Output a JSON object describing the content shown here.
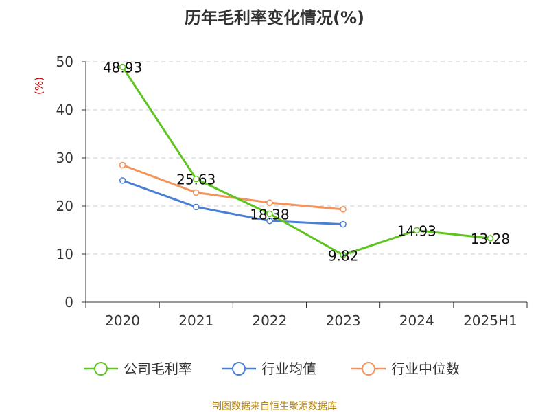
{
  "chart_data": {
    "type": "line",
    "title": "历年毛利率变化情况(%)",
    "ylabel": "(%)",
    "xlabel": "",
    "categories": [
      "2020",
      "2021",
      "2022",
      "2023",
      "2024",
      "2025H1"
    ],
    "ylim": [
      0,
      50
    ],
    "yticks": [
      0,
      10,
      20,
      30,
      40,
      50
    ],
    "grid": true,
    "legend_position": "bottom",
    "series": [
      {
        "name": "公司毛利率",
        "color": "#5ec41f",
        "values": [
          48.93,
          25.63,
          18.38,
          9.82,
          14.93,
          13.28
        ],
        "labels": [
          "48.93",
          "25.63",
          "18.38",
          "9.82",
          "14.93",
          "13.28"
        ]
      },
      {
        "name": "行业均值",
        "color": "#4a7fd6",
        "values": [
          25.3,
          19.8,
          16.9,
          16.2,
          null,
          null
        ]
      },
      {
        "name": "行业中位数",
        "color": "#f5935a",
        "values": [
          28.5,
          22.8,
          20.7,
          19.3,
          null,
          null
        ]
      }
    ],
    "source": "制图数据来自恒生聚源数据库"
  }
}
